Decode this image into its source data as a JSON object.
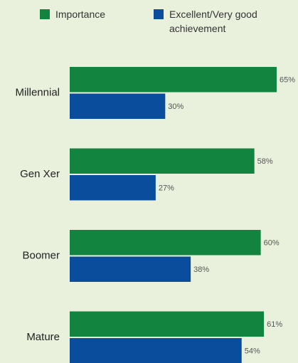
{
  "chart_data": {
    "type": "hbar_grouped",
    "categories": [
      "Millennial",
      "Gen Xer",
      "Boomer",
      "Mature"
    ],
    "series": [
      {
        "name": "Importance",
        "color": "#13843f",
        "values": [
          65,
          58,
          60,
          61
        ],
        "value_labels": [
          "65%",
          "58%",
          "60%",
          "61%"
        ]
      },
      {
        "name": "Excellent/Very good achievement",
        "color": "#0b4d9d",
        "values": [
          30,
          27,
          38,
          54
        ],
        "value_labels": [
          "30%",
          "27%",
          "38%",
          "54%"
        ]
      }
    ],
    "legend": "top"
  }
}
